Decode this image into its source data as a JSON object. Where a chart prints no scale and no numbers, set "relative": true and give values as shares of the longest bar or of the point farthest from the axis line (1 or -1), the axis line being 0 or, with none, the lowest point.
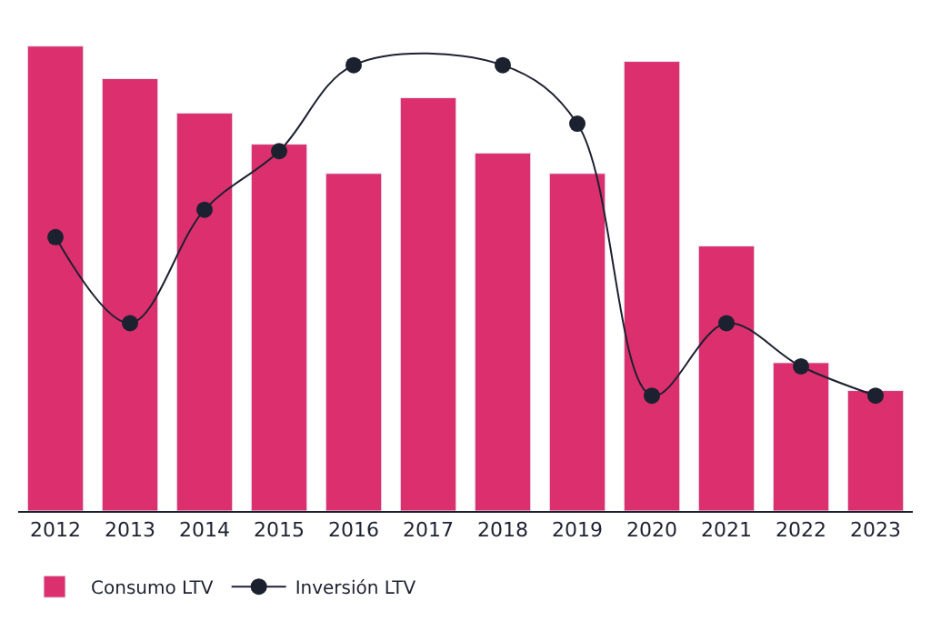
{
  "chart_data": {
    "type": "bar",
    "relative": true,
    "categories": [
      "2012",
      "2013",
      "2014",
      "2015",
      "2016",
      "2017",
      "2018",
      "2019",
      "2020",
      "2021",
      "2022",
      "2023"
    ],
    "series": [
      {
        "name": "Consumo LTV",
        "color": "#dc2f6e",
        "values": [
          1,
          0.93,
          0.856,
          0.789,
          0.726,
          0.889,
          0.77,
          0.726,
          0.967,
          0.57,
          0.319,
          0.259
        ]
      },
      {
        "name": "Inversión LTV",
        "type": "line",
        "color": "#1c2130",
        "values": [
          0.589,
          0.404,
          0.648,
          0.774,
          0.959,
          null,
          0.959,
          0.833,
          0.248,
          0.404,
          0.311,
          0.248
        ]
      }
    ],
    "marker": "circle",
    "line_style": "solid",
    "legend": "bottom left"
  }
}
